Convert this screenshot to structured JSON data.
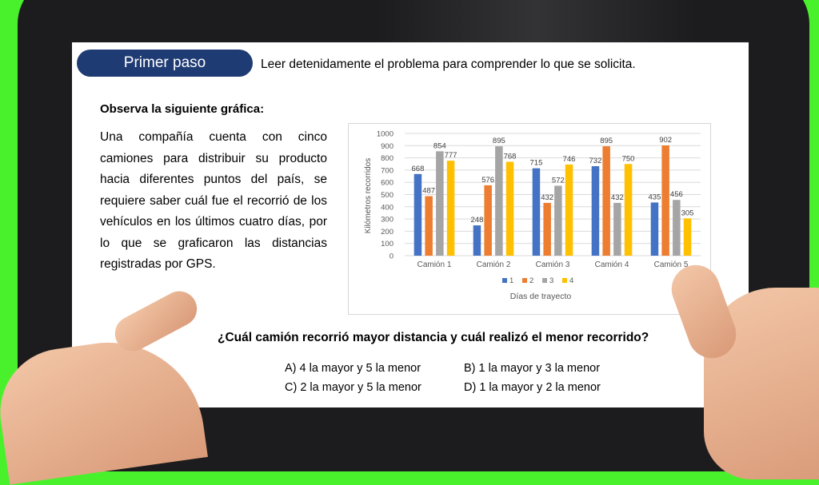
{
  "header": {
    "step_label": "Primer paso",
    "instruction": "Leer detenidamente el problema para comprender lo que se solicita."
  },
  "content": {
    "observe_label": "Observa la siguiente gráfica:",
    "paragraph": "Una compañía cuenta con cinco camiones para distribuir su producto hacia diferentes puntos del país, se requiere saber cuál fue el recorrió de los vehículos en los últimos cuatro días, por lo que se graficaron las distancias registradas por GPS."
  },
  "question": {
    "text": "¿Cuál camión recorrió mayor distancia y cuál realizó el menor recorrido?",
    "options": [
      "A) 4 la mayor y 5 la menor",
      "B) 1 la mayor y 3 la menor",
      "C) 2 la mayor y 5 la menor",
      "D) 1 la mayor y 2 la menor"
    ]
  },
  "chart_data": {
    "type": "bar",
    "categories": [
      "Camión 1",
      "Camión 2",
      "Camión 3",
      "Camión 4",
      "Camión 5"
    ],
    "series": [
      {
        "name": "1",
        "color": "#4472c4",
        "values": [
          668,
          248,
          715,
          732,
          435
        ]
      },
      {
        "name": "2",
        "color": "#ed7d31",
        "values": [
          487,
          576,
          432,
          895,
          902
        ]
      },
      {
        "name": "3",
        "color": "#a5a5a5",
        "values": [
          854,
          895,
          572,
          432,
          456
        ]
      },
      {
        "name": "4",
        "color": "#ffc000",
        "values": [
          777,
          768,
          746,
          750,
          305
        ]
      }
    ],
    "ylabel": "Kilómetros recorridos",
    "legend_title": "Días de trayecto",
    "ylim": [
      0,
      1000
    ],
    "yticks": [
      0,
      100,
      200,
      300,
      400,
      500,
      600,
      700,
      800,
      900,
      1000
    ],
    "grid": true,
    "legend_position": "bottom"
  }
}
